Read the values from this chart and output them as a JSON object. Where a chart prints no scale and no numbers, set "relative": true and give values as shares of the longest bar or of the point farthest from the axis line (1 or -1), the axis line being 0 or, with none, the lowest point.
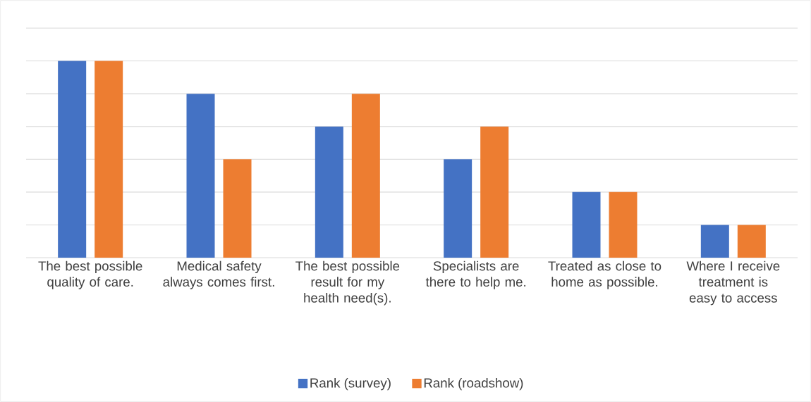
{
  "chart_data": {
    "type": "bar",
    "relative": true,
    "grid": "y",
    "legend": "bottom",
    "categories": [
      "The best possible quality of care.",
      "Medical safety always comes first.",
      "The best possible result for my health need(s).",
      "Specialists are there to help me.",
      "Treated as close to home as possible.",
      "Where I receive treatment is easy to access"
    ],
    "series": [
      {
        "name": "Rank (survey)",
        "color": "#4472c4",
        "values": [
          1,
          0.8333,
          0.6667,
          0.5,
          0.3333,
          0.1667
        ]
      },
      {
        "name": "Rank (roadshow)",
        "color": "#ed7d31",
        "values": [
          1,
          0.5,
          0.8333,
          0.6667,
          0.3333,
          0.1667
        ]
      }
    ]
  }
}
